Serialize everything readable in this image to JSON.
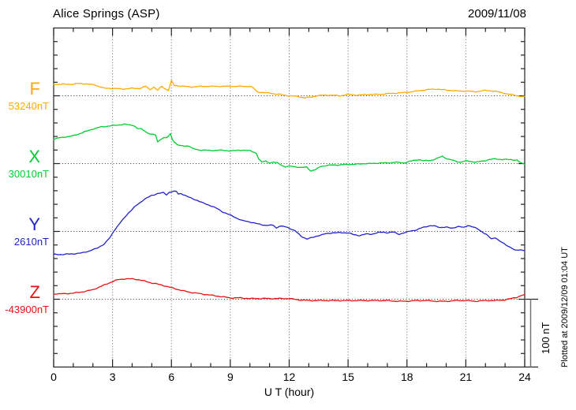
{
  "header": {
    "title": "Alice Springs (ASP)",
    "date": "2009/11/08"
  },
  "footer_note": "Plotted at 2009/12/09 01:04 UT",
  "scale_bar": {
    "label": "100 nT",
    "nT": 100
  },
  "x_axis": {
    "label": "U T (hour)",
    "min": 0,
    "max": 24,
    "minor_step": 1,
    "major_step": 3,
    "tick_labels": [
      "0",
      "3",
      "6",
      "9",
      "12",
      "15",
      "18",
      "21",
      "24"
    ],
    "grid_hours": [
      3,
      6,
      9,
      12,
      15,
      18,
      21
    ]
  },
  "chart_data": {
    "type": "line",
    "title": "Alice Springs (ASP) magnetogram",
    "subtitle": "2009/11/08",
    "xlabel": "U T (hour)",
    "ylabel": "",
    "xlim": [
      0,
      24
    ],
    "grid": "dotted",
    "nT_per_minor_division": 20,
    "scale_bar_nT": 100,
    "legend_position": "left-margin",
    "series": [
      {
        "name": "F",
        "label": "F",
        "base_label": "53240nT",
        "base_nT": 53240,
        "color": "#FFAA00",
        "offsets_nT": [
          [
            0,
            17
          ],
          [
            0.5,
            17
          ],
          [
            1,
            17
          ],
          [
            1.2,
            18
          ],
          [
            1.5,
            18
          ],
          [
            1.8,
            17
          ],
          [
            2.1,
            16
          ],
          [
            2.3,
            14
          ],
          [
            2.6,
            11
          ],
          [
            3,
            11
          ],
          [
            3.5,
            10
          ],
          [
            4,
            11
          ],
          [
            4.4,
            11
          ],
          [
            4.7,
            14
          ],
          [
            4.9,
            9
          ],
          [
            5.1,
            13
          ],
          [
            5.3,
            8
          ],
          [
            5.5,
            14
          ],
          [
            5.7,
            10
          ],
          [
            5.85,
            8
          ],
          [
            6,
            22
          ],
          [
            6.15,
            15
          ],
          [
            6.3,
            15
          ],
          [
            6.6,
            14
          ],
          [
            7,
            13
          ],
          [
            7.5,
            14
          ],
          [
            8,
            14
          ],
          [
            8.5,
            14
          ],
          [
            9,
            14
          ],
          [
            9.5,
            14
          ],
          [
            10,
            14
          ],
          [
            10.2,
            11
          ],
          [
            10.35,
            6
          ],
          [
            10.6,
            5
          ],
          [
            11,
            4
          ],
          [
            11.5,
            2
          ],
          [
            12,
            0
          ],
          [
            12.4,
            -1
          ],
          [
            12.8,
            -3
          ],
          [
            13.1,
            -2
          ],
          [
            13.4,
            0
          ],
          [
            13.8,
            1
          ],
          [
            14.2,
            1
          ],
          [
            14.6,
            0
          ],
          [
            15,
            2
          ],
          [
            15.5,
            1
          ],
          [
            16,
            2
          ],
          [
            16.5,
            2
          ],
          [
            17,
            3
          ],
          [
            17.5,
            4
          ],
          [
            18,
            5
          ],
          [
            18.5,
            7
          ],
          [
            19,
            9
          ],
          [
            19.5,
            10
          ],
          [
            19.8,
            9
          ],
          [
            20.2,
            8
          ],
          [
            20.6,
            7
          ],
          [
            21,
            7
          ],
          [
            21.5,
            6
          ],
          [
            22,
            8
          ],
          [
            22.4,
            7
          ],
          [
            22.8,
            5
          ],
          [
            23.2,
            2
          ],
          [
            23.5,
            1
          ],
          [
            23.8,
            -1
          ],
          [
            24,
            -1
          ]
        ]
      },
      {
        "name": "X",
        "label": "X",
        "base_label": "30010nT",
        "base_nT": 30010,
        "color": "#00CC33",
        "offsets_nT": [
          [
            0,
            36
          ],
          [
            0.3,
            38
          ],
          [
            0.5,
            39
          ],
          [
            0.8,
            40
          ],
          [
            1,
            41
          ],
          [
            1.3,
            44
          ],
          [
            1.6,
            47
          ],
          [
            2,
            51
          ],
          [
            2.4,
            54
          ],
          [
            2.7,
            55
          ],
          [
            3,
            56
          ],
          [
            3.3,
            57
          ],
          [
            3.6,
            58
          ],
          [
            3.9,
            57
          ],
          [
            4.1,
            56
          ],
          [
            4.25,
            52
          ],
          [
            4.45,
            51
          ],
          [
            4.6,
            49
          ],
          [
            4.8,
            45
          ],
          [
            5,
            43
          ],
          [
            5.2,
            42
          ],
          [
            5.3,
            32
          ],
          [
            5.45,
            36
          ],
          [
            5.6,
            38
          ],
          [
            5.75,
            38
          ],
          [
            5.85,
            40
          ],
          [
            5.95,
            44
          ],
          [
            6.05,
            36
          ],
          [
            6.15,
            32
          ],
          [
            6.3,
            28
          ],
          [
            6.5,
            26
          ],
          [
            6.7,
            26
          ],
          [
            6.9,
            26
          ],
          [
            7.1,
            22
          ],
          [
            7.4,
            20
          ],
          [
            7.7,
            20
          ],
          [
            8,
            19
          ],
          [
            8.4,
            20
          ],
          [
            8.8,
            19
          ],
          [
            9.2,
            19
          ],
          [
            9.6,
            20
          ],
          [
            10,
            19
          ],
          [
            10.2,
            17
          ],
          [
            10.33,
            15
          ],
          [
            10.45,
            7
          ],
          [
            10.6,
            2
          ],
          [
            10.8,
            4
          ],
          [
            11,
            1
          ],
          [
            11.2,
            2
          ],
          [
            11.4,
            1
          ],
          [
            11.6,
            -2
          ],
          [
            11.8,
            -5
          ],
          [
            12,
            -4
          ],
          [
            12.2,
            -4
          ],
          [
            12.4,
            -5
          ],
          [
            12.6,
            -6
          ],
          [
            12.9,
            -5
          ],
          [
            13.1,
            -11
          ],
          [
            13.35,
            -9
          ],
          [
            13.6,
            -4
          ],
          [
            13.9,
            -3
          ],
          [
            14.2,
            -2
          ],
          [
            14.6,
            -2
          ],
          [
            15,
            -1
          ],
          [
            15.4,
            -1
          ],
          [
            15.8,
            0
          ],
          [
            16.2,
            0
          ],
          [
            16.6,
            1
          ],
          [
            17,
            1
          ],
          [
            17.4,
            2
          ],
          [
            17.85,
            1
          ],
          [
            18.25,
            4
          ],
          [
            18.6,
            6
          ],
          [
            18.85,
            4
          ],
          [
            19.25,
            5
          ],
          [
            19.5,
            7
          ],
          [
            19.8,
            11
          ],
          [
            20.05,
            7
          ],
          [
            20.3,
            5
          ],
          [
            20.7,
            2
          ],
          [
            21.05,
            4
          ],
          [
            21.3,
            3
          ],
          [
            21.5,
            2
          ],
          [
            21.9,
            4
          ],
          [
            22.2,
            6
          ],
          [
            22.5,
            7
          ],
          [
            22.9,
            6
          ],
          [
            23.3,
            6
          ],
          [
            23.6,
            5
          ],
          [
            23.8,
            1
          ],
          [
            24,
            -1
          ]
        ]
      },
      {
        "name": "Y",
        "label": "Y",
        "base_label": "2610nT",
        "base_nT": 2610,
        "color": "#2222CC",
        "offsets_nT": [
          [
            0,
            -34
          ],
          [
            0.5,
            -34
          ],
          [
            1,
            -33
          ],
          [
            1.4,
            -32
          ],
          [
            1.8,
            -29
          ],
          [
            2.2,
            -25
          ],
          [
            2.6,
            -18
          ],
          [
            2.9,
            -8
          ],
          [
            3.05,
            0
          ],
          [
            3.4,
            13
          ],
          [
            3.8,
            27
          ],
          [
            4.2,
            38
          ],
          [
            4.6,
            47
          ],
          [
            5,
            53
          ],
          [
            5.3,
            56
          ],
          [
            5.6,
            57
          ],
          [
            5.75,
            54
          ],
          [
            5.9,
            58
          ],
          [
            6.1,
            59
          ],
          [
            6.25,
            59
          ],
          [
            6.35,
            55
          ],
          [
            6.5,
            56
          ],
          [
            6.7,
            53
          ],
          [
            7,
            49
          ],
          [
            7.3,
            46
          ],
          [
            7.6,
            42
          ],
          [
            8,
            38
          ],
          [
            8.3,
            34
          ],
          [
            8.6,
            29
          ],
          [
            9,
            24
          ],
          [
            9.3,
            20
          ],
          [
            9.6,
            16
          ],
          [
            10,
            14
          ],
          [
            10.4,
            11
          ],
          [
            10.8,
            9
          ],
          [
            11.2,
            9
          ],
          [
            11.35,
            5
          ],
          [
            11.5,
            8
          ],
          [
            11.75,
            7
          ],
          [
            12,
            5
          ],
          [
            12.3,
            1
          ],
          [
            12.6,
            -7
          ],
          [
            12.9,
            -11
          ],
          [
            13.2,
            -9
          ],
          [
            13.5,
            -6
          ],
          [
            13.8,
            -4
          ],
          [
            14.2,
            -2
          ],
          [
            14.6,
            -2
          ],
          [
            15,
            -2
          ],
          [
            15.3,
            -5
          ],
          [
            15.6,
            -6
          ],
          [
            15.9,
            -4
          ],
          [
            16.2,
            -4
          ],
          [
            16.5,
            -2
          ],
          [
            16.8,
            -1
          ],
          [
            17,
            -2
          ],
          [
            17.3,
            -1
          ],
          [
            17.6,
            -4
          ],
          [
            17.9,
            -2
          ],
          [
            18.2,
            1
          ],
          [
            18.5,
            2
          ],
          [
            18.8,
            6
          ],
          [
            19.1,
            8
          ],
          [
            19.4,
            8
          ],
          [
            19.7,
            6
          ],
          [
            20,
            6
          ],
          [
            20.3,
            5
          ],
          [
            20.6,
            7
          ],
          [
            20.9,
            6
          ],
          [
            21.1,
            9
          ],
          [
            21.3,
            7
          ],
          [
            21.6,
            4
          ],
          [
            21.9,
            -2
          ],
          [
            22.1,
            -6
          ],
          [
            22.3,
            -11
          ],
          [
            22.5,
            -9
          ],
          [
            22.7,
            -14
          ],
          [
            23,
            -19
          ],
          [
            23.3,
            -24
          ],
          [
            23.5,
            -28
          ],
          [
            23.8,
            -27
          ],
          [
            24,
            -28
          ]
        ]
      },
      {
        "name": "Z",
        "label": "Z",
        "base_label": "-43900nT",
        "base_nT": -43900,
        "color": "#E81010",
        "offsets_nT": [
          [
            0,
            8
          ],
          [
            0.5,
            8
          ],
          [
            1,
            9
          ],
          [
            1.5,
            11
          ],
          [
            2,
            14
          ],
          [
            2.5,
            20
          ],
          [
            3,
            26
          ],
          [
            3.3,
            29
          ],
          [
            3.6,
            30
          ],
          [
            4,
            30
          ],
          [
            4.3,
            29
          ],
          [
            4.6,
            27
          ],
          [
            5,
            24
          ],
          [
            5.5,
            21
          ],
          [
            6,
            17
          ],
          [
            6.5,
            13
          ],
          [
            7,
            10
          ],
          [
            7.5,
            8
          ],
          [
            8,
            6
          ],
          [
            8.5,
            4
          ],
          [
            9,
            2
          ],
          [
            9.5,
            2
          ],
          [
            10,
            1
          ],
          [
            10.5,
            1
          ],
          [
            11,
            1
          ],
          [
            11.5,
            1
          ],
          [
            12,
            1
          ],
          [
            12.5,
            -1
          ],
          [
            13,
            -2
          ],
          [
            13.5,
            -2
          ],
          [
            14,
            -2
          ],
          [
            14.5,
            -2
          ],
          [
            15,
            -2
          ],
          [
            15.5,
            -2
          ],
          [
            16,
            -2
          ],
          [
            16.5,
            -2
          ],
          [
            17,
            -2
          ],
          [
            17.5,
            -3
          ],
          [
            18,
            -3
          ],
          [
            18.5,
            -2
          ],
          [
            19,
            -2
          ],
          [
            19.5,
            -3
          ],
          [
            20,
            -3
          ],
          [
            20.5,
            -2
          ],
          [
            21,
            -2
          ],
          [
            21.5,
            -3
          ],
          [
            22,
            -2
          ],
          [
            22.5,
            -2
          ],
          [
            23,
            -1
          ],
          [
            23.3,
            1
          ],
          [
            23.6,
            3
          ],
          [
            23.8,
            5
          ],
          [
            24,
            7
          ]
        ]
      }
    ]
  }
}
